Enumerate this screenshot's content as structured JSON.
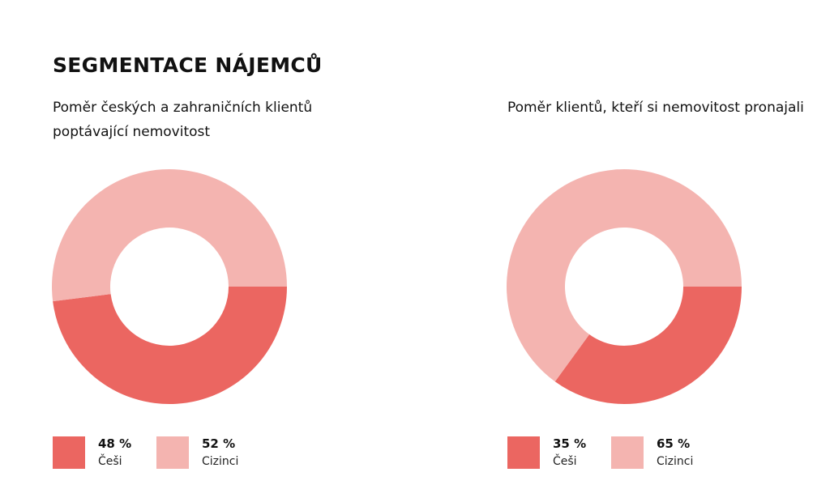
{
  "title": "SEGMENTACE NÁJEMCŮ",
  "colors": {
    "cesi": "#EB6661",
    "cizinci": "#F4B4B0"
  },
  "chart_data": [
    {
      "type": "pie",
      "title": "Poměr českých a zahraničních klientů poptávající nemovitost",
      "categories": [
        "Češi",
        "Cizinci"
      ],
      "values": [
        48,
        52
      ],
      "labels": [
        "48 %",
        "52 %"
      ],
      "hole": true,
      "legend": "bottom"
    },
    {
      "type": "pie",
      "title": "Poměr klientů, kteří si nemovitost pronajali",
      "categories": [
        "Češi",
        "Cizinci"
      ],
      "values": [
        35,
        65
      ],
      "labels": [
        "35 %",
        "65 %"
      ],
      "hole": true,
      "legend": "bottom"
    }
  ]
}
